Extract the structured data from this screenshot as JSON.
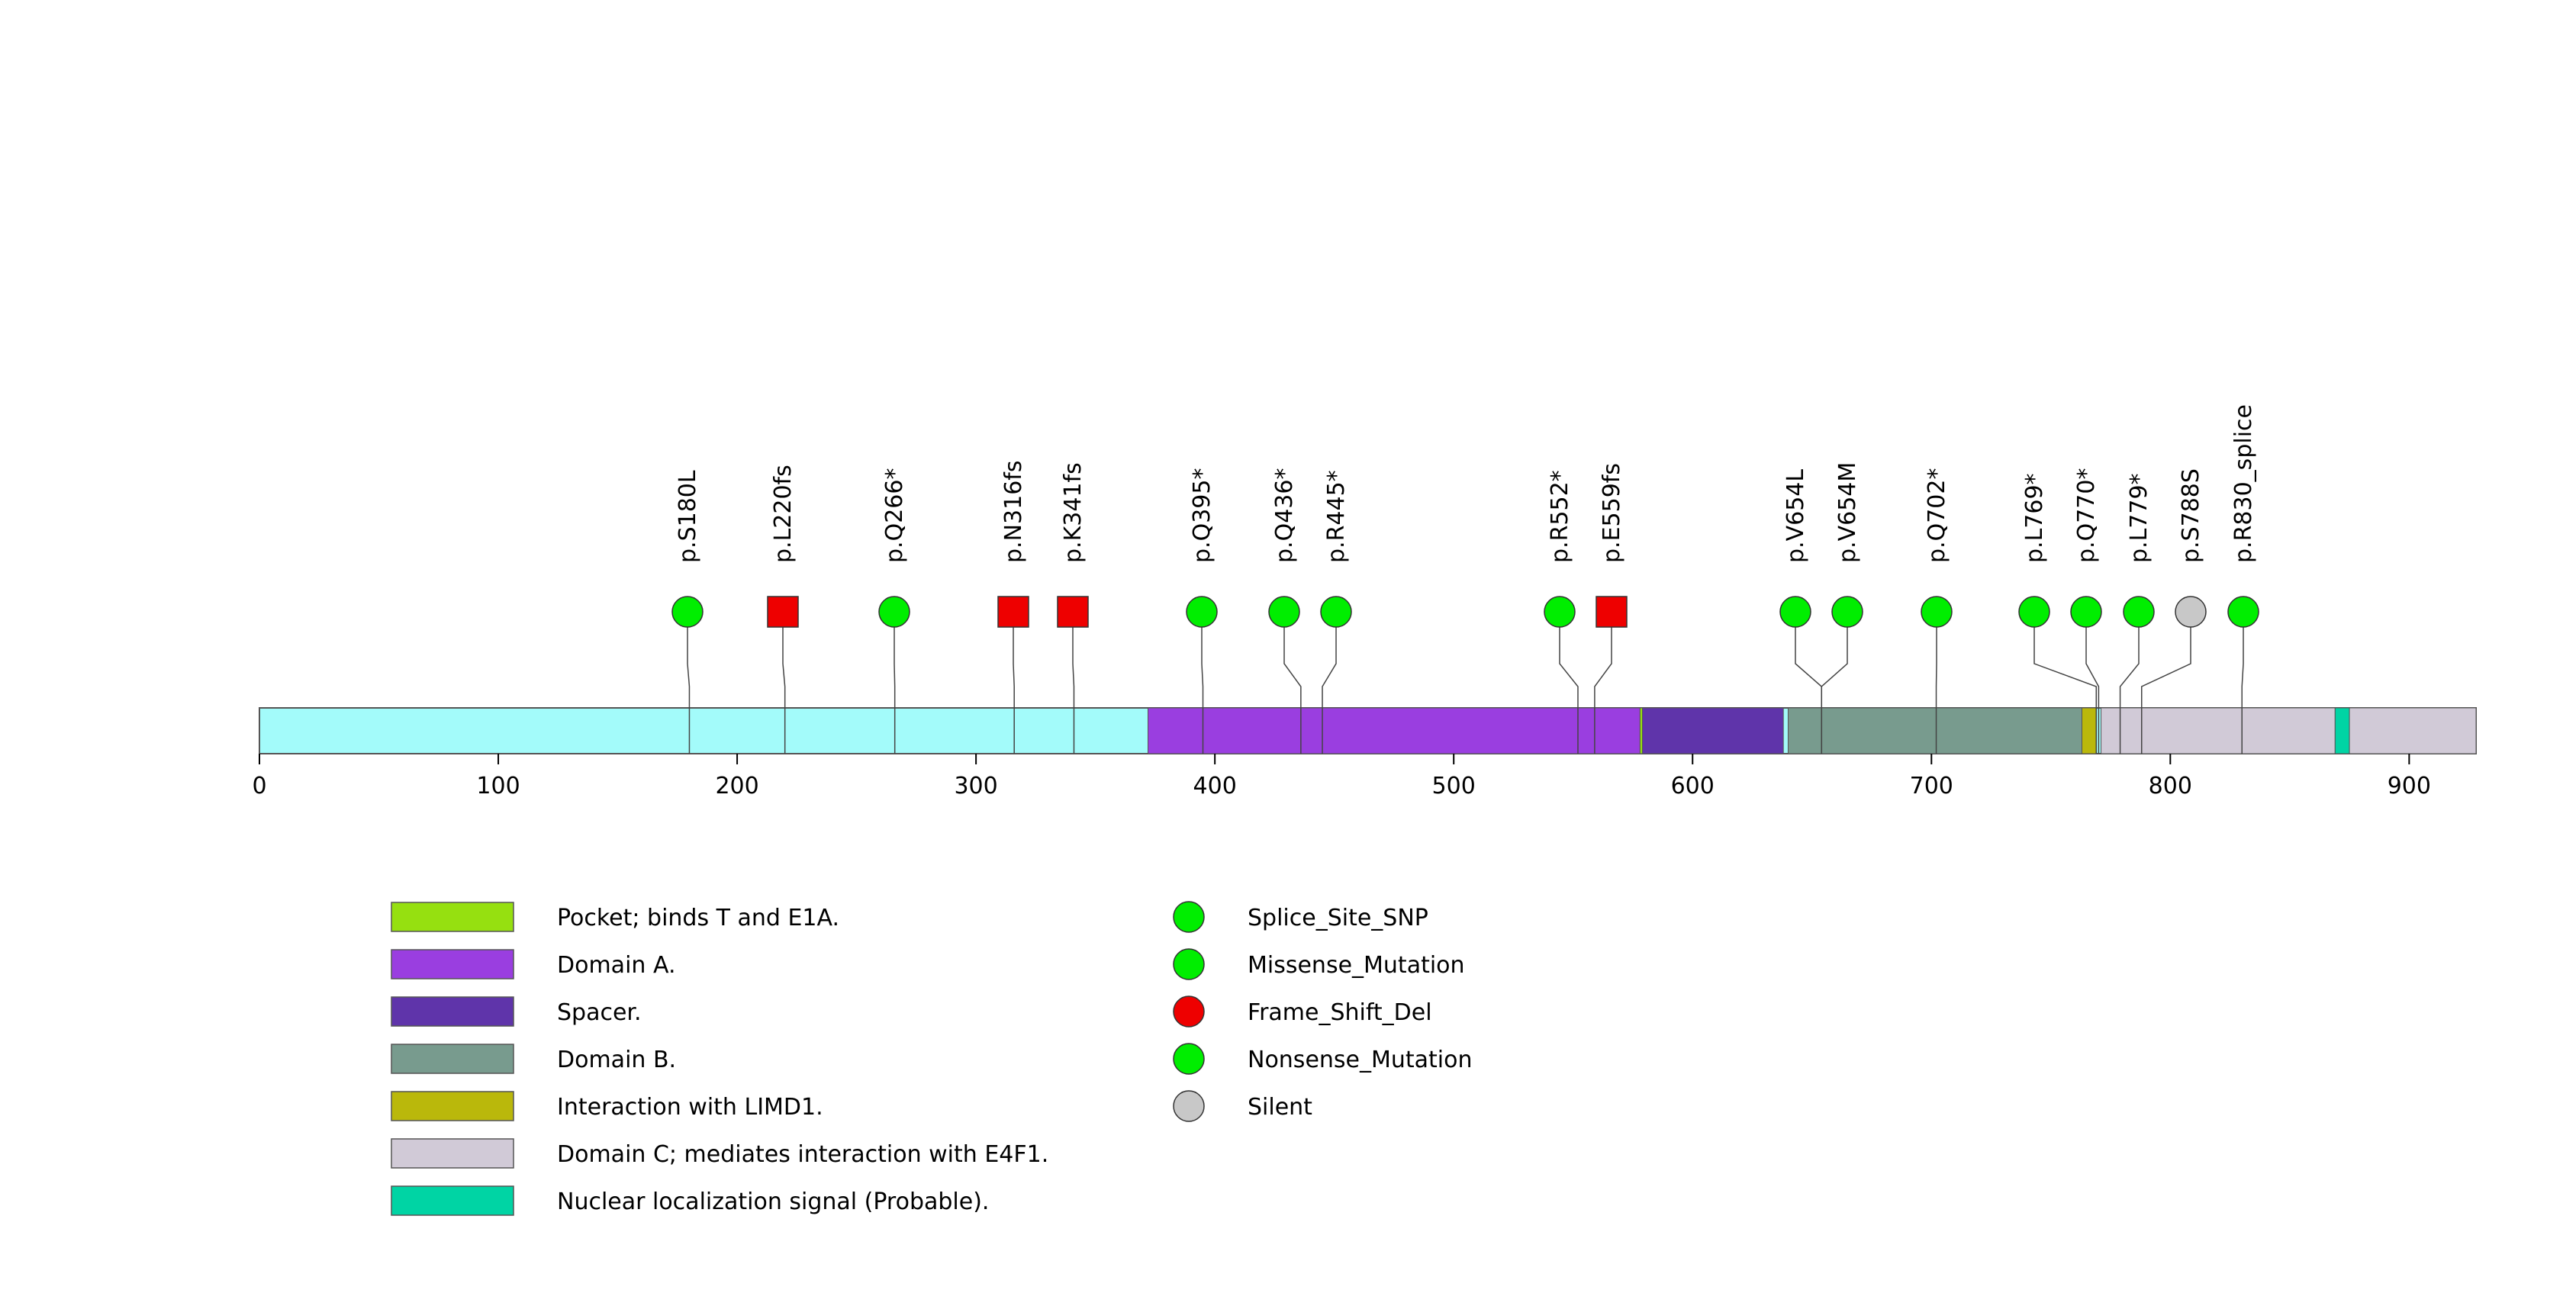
{
  "protein": {
    "length": 928,
    "axis_ticks": [
      0,
      100,
      200,
      300,
      400,
      500,
      600,
      700,
      800,
      900
    ],
    "base_color": "#a3fbfa"
  },
  "domains": [
    {
      "name": "Domain A.",
      "start": 372,
      "end": 578,
      "color": "#9a3ee0"
    },
    {
      "name": "Pocket; binds T and E1A.",
      "start": 578,
      "end": 579,
      "color": "#96e010"
    },
    {
      "name": "Spacer.",
      "start": 579,
      "end": 638,
      "color": "#5f34aa"
    },
    {
      "name": "Domain B.",
      "start": 640,
      "end": 763,
      "color": "#789b8e"
    },
    {
      "name": "Interaction with LIMD1.",
      "start": 763,
      "end": 769,
      "color": "#bab80b"
    },
    {
      "name": "Domain C; mediates interaction with E4F1.",
      "start": 771,
      "end": 869,
      "color": "#d1cad7"
    },
    {
      "name": "Nuclear localization signal (Probable).",
      "start": 869,
      "end": 875,
      "color": "#00d4a4"
    },
    {
      "name": "Domain C; mediates interaction with E4F1.",
      "start": 875,
      "end": 928,
      "color": "#d1cad7"
    }
  ],
  "mutations": [
    {
      "label": "p.S180L",
      "pos": 180,
      "shape": "circle",
      "color": "#00ee00"
    },
    {
      "label": "p.L220fs",
      "pos": 220,
      "shape": "square",
      "color": "#ee0000"
    },
    {
      "label": "p.Q266*",
      "pos": 266,
      "shape": "circle",
      "color": "#00ee00"
    },
    {
      "label": "p.N316fs",
      "pos": 316,
      "shape": "square",
      "color": "#ee0000"
    },
    {
      "label": "p.K341fs",
      "pos": 341,
      "shape": "square",
      "color": "#ee0000"
    },
    {
      "label": "p.Q395*",
      "pos": 395,
      "shape": "circle",
      "color": "#00ee00"
    },
    {
      "label": "p.Q436*",
      "pos": 436,
      "shape": "circle",
      "color": "#00ee00"
    },
    {
      "label": "p.R445*",
      "pos": 445,
      "shape": "circle",
      "color": "#00ee00"
    },
    {
      "label": "p.R552*",
      "pos": 552,
      "shape": "circle",
      "color": "#00ee00"
    },
    {
      "label": "p.E559fs",
      "pos": 559,
      "shape": "square",
      "color": "#ee0000"
    },
    {
      "label": "p.V654L",
      "pos": 654,
      "shape": "circle",
      "color": "#00ee00"
    },
    {
      "label": "p.V654M",
      "pos": 654,
      "shape": "circle",
      "color": "#00ee00"
    },
    {
      "label": "p.Q702*",
      "pos": 702,
      "shape": "circle",
      "color": "#00ee00"
    },
    {
      "label": "p.L769*",
      "pos": 769,
      "shape": "circle",
      "color": "#00ee00"
    },
    {
      "label": "p.Q770*",
      "pos": 770,
      "shape": "circle",
      "color": "#00ee00"
    },
    {
      "label": "p.L779*",
      "pos": 779,
      "shape": "circle",
      "color": "#00ee00"
    },
    {
      "label": "p.S788S",
      "pos": 788,
      "shape": "circle",
      "color": "#c8c8c8"
    },
    {
      "label": "p.R830_splice",
      "pos": 830,
      "shape": "circle",
      "color": "#00ee00"
    }
  ],
  "legend_domains": [
    {
      "label": "Pocket; binds T and E1A.",
      "color": "#96e010"
    },
    {
      "label": "Domain A.",
      "color": "#9a3ee0"
    },
    {
      "label": "Spacer.",
      "color": "#5f34aa"
    },
    {
      "label": "Domain B.",
      "color": "#789b8e"
    },
    {
      "label": "Interaction with LIMD1.",
      "color": "#bab80b"
    },
    {
      "label": "Domain C; mediates interaction with E4F1.",
      "color": "#d1cad7"
    },
    {
      "label": "Nuclear localization signal (Probable).",
      "color": "#00d4a4"
    }
  ],
  "legend_mutations": [
    {
      "label": "Splice_Site_SNP",
      "color": "#00ee00"
    },
    {
      "label": "Missense_Mutation",
      "color": "#00ee00"
    },
    {
      "label": "Frame_Shift_Del",
      "color": "#ee0000"
    },
    {
      "label": "Nonsense_Mutation",
      "color": "#00ee00"
    },
    {
      "label": "Silent",
      "color": "#c8c8c8"
    }
  ]
}
